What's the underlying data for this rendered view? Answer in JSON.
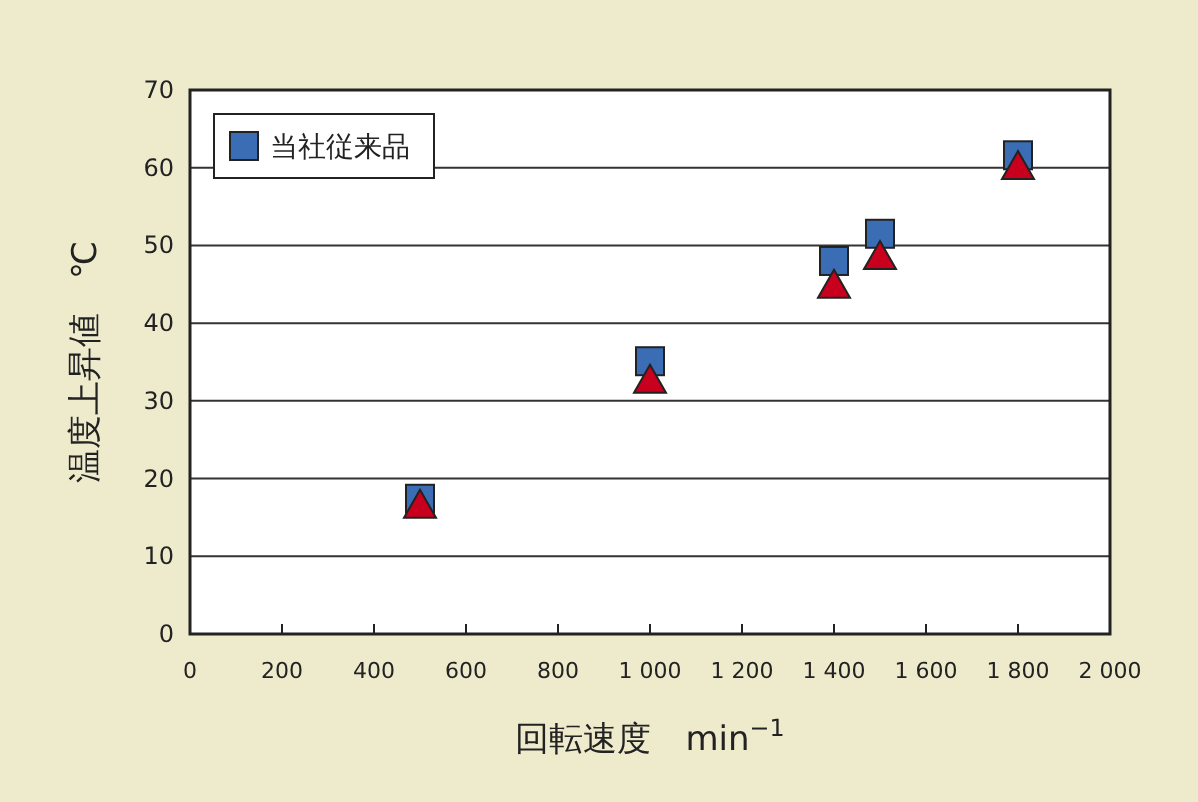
{
  "chart_data": {
    "type": "scatter",
    "xlabel": "回転速度　min$^{−1}$",
    "ylabel": "温度上昇値　℃",
    "xlim": [
      0,
      2000
    ],
    "ylim": [
      0,
      70
    ],
    "xticks": [
      0,
      200,
      400,
      600,
      800,
      {
        "value": 1000,
        "label": "1 000"
      },
      {
        "value": 1200,
        "label": "1 200"
      },
      {
        "value": 1400,
        "label": "1 400"
      },
      {
        "value": 1600,
        "label": "1 600"
      },
      {
        "value": 1800,
        "label": "1 800"
      },
      {
        "value": 2000,
        "label": "2 000"
      }
    ],
    "yticks": [
      0,
      10,
      20,
      30,
      40,
      50,
      60,
      70
    ],
    "grid": "y",
    "legend": "top left",
    "series": [
      {
        "name": "当社従来品",
        "color": "#3b6db4",
        "marker": "square",
        "x": [
          500,
          1000,
          1400,
          1500,
          1800
        ],
        "values": [
          17.4,
          35.1,
          48.0,
          51.5,
          61.6
        ]
      },
      {
        "color": "#c8001e",
        "marker": "triangle",
        "x": [
          500,
          1000,
          1400,
          1500,
          1800
        ],
        "values": [
          16.5,
          32.6,
          44.8,
          48.5,
          60.1
        ]
      }
    ]
  }
}
